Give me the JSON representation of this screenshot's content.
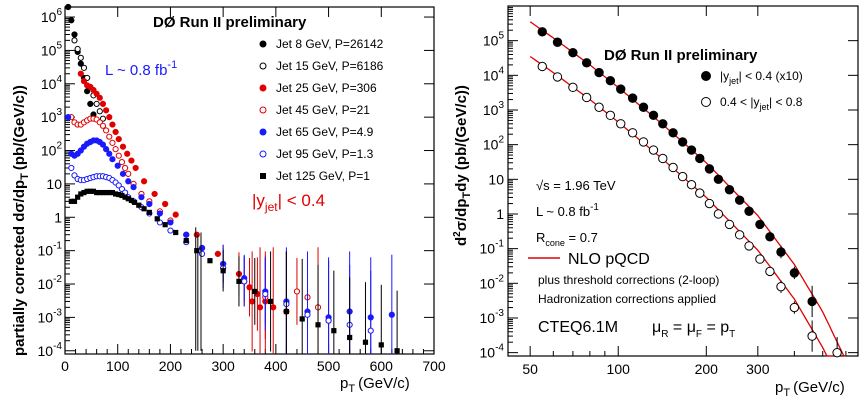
{
  "chart_data": [
    {
      "type": "scatter",
      "title": "DØ Run II preliminary",
      "xlabel": "p",
      "xlabel_sub": "T",
      "xlabel_unit": "(GeV/c)",
      "ylabel": "partially corrected dσ/dp",
      "ylabel_sub": "T",
      "ylabel_unit": "(pb/(GeV/c))",
      "x_scale": "linear",
      "y_scale": "log",
      "xlim": [
        0,
        700
      ],
      "ylim": [
        8e-05,
        2000000
      ],
      "x_ticks": [
        0,
        100,
        200,
        300,
        400,
        500,
        600,
        700
      ],
      "x_tick_labels": [
        "0",
        "100",
        "200",
        "300",
        "400",
        "500",
        "600",
        "700"
      ],
      "y_ticks": [
        0.0001,
        0.001,
        0.01,
        0.1,
        1,
        10,
        100,
        1000,
        10000,
        100000,
        1000000
      ],
      "y_tick_labels": [
        {
          "base": "10",
          "exp": "-4"
        },
        {
          "base": "10",
          "exp": "-3"
        },
        {
          "base": "10",
          "exp": "-2"
        },
        {
          "base": "10",
          "exp": "-1"
        },
        {
          "base": "1",
          "exp": ""
        },
        {
          "base": "10",
          "exp": ""
        },
        {
          "base": "10",
          "exp": "2"
        },
        {
          "base": "10",
          "exp": "3"
        },
        {
          "base": "10",
          "exp": "4"
        },
        {
          "base": "10",
          "exp": "5"
        },
        {
          "base": "10",
          "exp": "6"
        }
      ],
      "annotations": {
        "lumi": {
          "text": "L ~ 0.8 fb",
          "sup": "-1",
          "color": "#1a1aff"
        },
        "rapidity": {
          "text": "|y",
          "sub": "jet",
          "rest": "| < 0.4",
          "color": "#e00000"
        }
      },
      "legend_position": "top-right",
      "series": [
        {
          "name": "Jet 8 GeV, P=26142",
          "marker": "filled-circle",
          "color": "#000000",
          "x": [
            6,
            12,
            18,
            24,
            30,
            36,
            42,
            48,
            54
          ],
          "y": [
            2000000,
            800000,
            300000,
            90000,
            40000,
            15000,
            6000,
            2500,
            1200
          ]
        },
        {
          "name": "Jet 15 GeV, P=6186",
          "marker": "open-circle",
          "color": "#000000",
          "x": [
            18,
            24,
            30,
            36,
            42,
            48,
            54,
            60,
            66,
            72
          ],
          "y": [
            200000,
            110000,
            60000,
            30000,
            15000,
            8000,
            4500,
            2500,
            1500,
            900
          ]
        },
        {
          "name": "Jet 25 GeV, P=306",
          "marker": "filled-circle",
          "color": "#e00000",
          "x": [
            30,
            36,
            42,
            48,
            54,
            60,
            66,
            72,
            78,
            84,
            90,
            96,
            102,
            110,
            118,
            126,
            134,
            150,
            170,
            190,
            210,
            250,
            290,
            330,
            350,
            355,
            365,
            370,
            380,
            395,
            420
          ],
          "y": [
            20000,
            12000,
            9000,
            8000,
            6500,
            5000,
            3800,
            2500,
            1600,
            1000,
            600,
            360,
            220,
            130,
            80,
            50,
            30,
            12,
            5,
            2.5,
            1.2,
            0.3,
            0.08,
            0.02,
            0.008,
            0.003,
            0.005,
            0.002,
            0.003,
            0.002,
            0.0015
          ]
        },
        {
          "name": "Jet 45 GeV, P=21",
          "marker": "open-circle",
          "color": "#e00000",
          "x": [
            12,
            18,
            24,
            30,
            36,
            42,
            48,
            54,
            60,
            66,
            72,
            78,
            84,
            90,
            96,
            102,
            108,
            114,
            120,
            130,
            145,
            160,
            180,
            200,
            230,
            260,
            300,
            340,
            380,
            420,
            440,
            460,
            480,
            500
          ],
          "y": [
            1000,
            700,
            600,
            600,
            700,
            800,
            900,
            900,
            850,
            700,
            550,
            400,
            260,
            170,
            110,
            70,
            45,
            30,
            20,
            10,
            5,
            3,
            1.5,
            0.8,
            0.3,
            0.12,
            0.04,
            0.012,
            0.004,
            0.0015,
            0.006,
            0.004,
            0.002,
            0.0008
          ]
        },
        {
          "name": "Jet 65 GeV, P=4.9",
          "marker": "filled-circle",
          "color": "#1a1aff",
          "x": [
            6,
            12,
            18,
            24,
            30,
            36,
            42,
            48,
            54,
            60,
            66,
            72,
            78,
            84,
            90,
            100,
            110,
            120,
            130,
            145,
            160,
            180,
            200,
            230,
            260,
            300,
            340,
            380,
            420,
            460,
            500,
            540,
            580,
            620
          ],
          "y": [
            1000,
            80,
            70,
            80,
            100,
            130,
            160,
            180,
            200,
            200,
            180,
            150,
            110,
            80,
            55,
            35,
            20,
            12,
            8,
            4,
            2.5,
            1.3,
            0.7,
            0.3,
            0.12,
            0.04,
            0.015,
            0.006,
            0.003,
            0.0015,
            0.001,
            0.0015,
            0.001,
            0.0012
          ]
        },
        {
          "name": "Jet 95 GeV, P=1.3",
          "marker": "open-circle",
          "color": "#1a1aff",
          "x": [
            12,
            18,
            24,
            30,
            36,
            42,
            48,
            54,
            60,
            66,
            72,
            78,
            84,
            90,
            96,
            102,
            108,
            114,
            120,
            130,
            145,
            160,
            180,
            200,
            230,
            260,
            300,
            340,
            380,
            420,
            460,
            500,
            540,
            580
          ],
          "y": [
            30,
            18,
            14,
            13,
            13,
            14,
            15,
            16,
            17,
            17,
            17,
            16,
            15,
            13,
            11,
            9,
            7,
            5.5,
            4,
            3,
            2,
            1.3,
            0.7,
            0.4,
            0.18,
            0.08,
            0.03,
            0.012,
            0.005,
            0.0025,
            0.0012,
            0.0008,
            0.0006,
            0.0004
          ]
        },
        {
          "name": "Jet 125 GeV, P=1",
          "marker": "filled-square",
          "color": "#000000",
          "x": [
            12,
            18,
            24,
            30,
            36,
            42,
            48,
            54,
            60,
            66,
            72,
            78,
            84,
            90,
            96,
            102,
            108,
            114,
            120,
            126,
            132,
            140,
            150,
            160,
            175,
            190,
            210,
            230,
            250,
            275,
            300,
            330,
            360,
            390,
            420,
            450,
            480,
            510,
            540,
            570,
            600,
            630
          ],
          "y": [
            3,
            3,
            4,
            5,
            5.5,
            6,
            6,
            6,
            5.5,
            5.5,
            5.5,
            5.5,
            5.5,
            5.5,
            5,
            4.8,
            4.5,
            4,
            3.6,
            3.2,
            2.8,
            2.3,
            1.8,
            1.4,
            0.9,
            0.6,
            0.35,
            0.2,
            0.1,
            0.05,
            0.025,
            0.012,
            0.006,
            0.003,
            0.0015,
            0.0009,
            0.0006,
            0.0004,
            0.00025,
            0.00018,
            0.00015,
            0.0001
          ]
        }
      ]
    },
    {
      "type": "scatter",
      "title": "DØ Run II preliminary",
      "xlabel": "p",
      "xlabel_sub": "T",
      "xlabel_unit": "(GeV/c)",
      "ylabel": "d",
      "ylabel_sup": "2",
      "ylabel_rest": "σ/dp",
      "ylabel_sub": "T",
      "ylabel_tail": "dy (pb/(GeV/c))",
      "x_scale": "log",
      "y_scale": "log",
      "xlim": [
        42,
        660
      ],
      "ylim": [
        8e-05,
        1000000
      ],
      "x_ticks": [
        50,
        100,
        200,
        300
      ],
      "x_tick_labels": [
        "50",
        "100",
        "200",
        "300"
      ],
      "y_ticks": [
        0.0001,
        0.001,
        0.01,
        0.1,
        1,
        10,
        100,
        1000,
        10000,
        100000
      ],
      "y_tick_labels": [
        {
          "base": "10",
          "exp": "-4"
        },
        {
          "base": "10",
          "exp": "-3"
        },
        {
          "base": "10",
          "exp": "-2"
        },
        {
          "base": "10",
          "exp": "-1"
        },
        {
          "base": "1",
          "exp": ""
        },
        {
          "base": "10",
          "exp": ""
        },
        {
          "base": "10",
          "exp": "2"
        },
        {
          "base": "10",
          "exp": "3"
        },
        {
          "base": "10",
          "exp": "4"
        },
        {
          "base": "10",
          "exp": "5"
        }
      ],
      "legend_position": "top-right",
      "annotations": {
        "sqrts": {
          "text": "s = 1.96 TeV"
        },
        "lumi": {
          "text": "L ~ 0.8 fb",
          "sup": "-1"
        },
        "rcone": {
          "text": "R",
          "sub": "cone",
          "rest": " = 0.7"
        },
        "nlo": {
          "text": "NLO pQCD",
          "color": "#e00000"
        },
        "thresh": {
          "text": "plus threshold corrections (2-loop)"
        },
        "hadr": {
          "text": "Hadronization corrections applied"
        },
        "pdf": {
          "text": "CTEQ6.1M"
        },
        "scale": {
          "mu": "μ",
          "r": "R",
          "eq": " = ",
          "f": "F",
          "pt": "p",
          "t": "T"
        }
      },
      "series": [
        {
          "name": "|y_jet| < 0.4 (x10)",
          "label_parts": [
            "|y",
            "jet",
            "| < 0.4 (x10)"
          ],
          "marker": "filled-circle",
          "color": "#000000",
          "x": [
            55,
            62,
            70,
            78,
            86,
            94,
            102,
            112,
            122,
            132,
            142,
            154,
            166,
            178,
            190,
            205,
            220,
            240,
            260,
            280,
            305,
            330,
            360,
            400,
            460
          ],
          "y": [
            180000,
            90000,
            45000,
            23000,
            12000,
            7000,
            4000,
            2200,
            1200,
            700,
            400,
            220,
            120,
            70,
            40,
            20,
            10,
            5,
            2.5,
            1.2,
            0.5,
            0.22,
            0.08,
            0.02,
            0.003
          ],
          "fit": [
            [
              50,
              350000
            ],
            [
              60,
              120000
            ],
            [
              80,
              20000
            ],
            [
              100,
              4500
            ],
            [
              140,
              420
            ],
            [
              200,
              30
            ],
            [
              300,
              0.9
            ],
            [
              400,
              0.035
            ],
            [
              500,
              0.0015
            ],
            [
              600,
              6e-05
            ]
          ]
        },
        {
          "name": "0.4 < |y_jet| < 0.8",
          "label_parts": [
            "0.4 < |y",
            "jet",
            "| < 0.8"
          ],
          "marker": "open-circle",
          "color": "#000000",
          "x": [
            55,
            62,
            70,
            78,
            86,
            94,
            102,
            112,
            122,
            132,
            142,
            154,
            166,
            178,
            190,
            205,
            220,
            240,
            260,
            280,
            305,
            330,
            360,
            400,
            460,
            560
          ],
          "y": [
            18000,
            9000,
            4500,
            2300,
            1200,
            700,
            400,
            220,
            120,
            70,
            40,
            22,
            12,
            7,
            4,
            2,
            1,
            0.5,
            0.25,
            0.12,
            0.05,
            0.022,
            0.008,
            0.002,
            0.0003,
            0.0001
          ],
          "fit": [
            [
              50,
              35000
            ],
            [
              60,
              12000
            ],
            [
              80,
              2000
            ],
            [
              100,
              450
            ],
            [
              140,
              42
            ],
            [
              200,
              3
            ],
            [
              300,
              0.09
            ],
            [
              400,
              0.0035
            ],
            [
              500,
              0.00014
            ],
            [
              560,
              2e-05
            ]
          ]
        }
      ]
    }
  ]
}
